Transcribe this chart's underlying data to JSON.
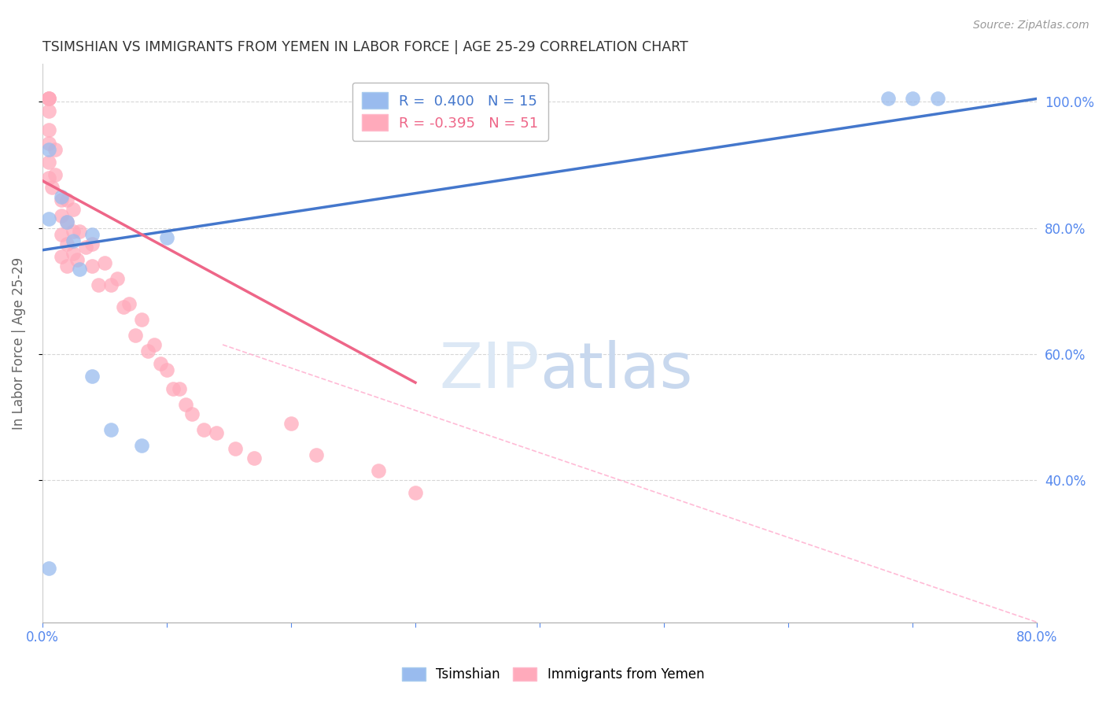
{
  "title": "TSIMSHIAN VS IMMIGRANTS FROM YEMEN IN LABOR FORCE | AGE 25-29 CORRELATION CHART",
  "source": "Source: ZipAtlas.com",
  "ylabel": "In Labor Force | Age 25-29",
  "xlim": [
    0.0,
    0.8
  ],
  "ylim": [
    0.175,
    1.06
  ],
  "blue_R": "0.400",
  "blue_N": "15",
  "pink_R": "-0.395",
  "pink_N": "51",
  "blue_marker_color": "#99BBEE",
  "pink_marker_color": "#FFAABB",
  "blue_line_color": "#4477CC",
  "pink_line_color": "#EE6688",
  "diag_line_color": "#FFAACC",
  "axis_color": "#5588EE",
  "grid_color": "#CCCCCC",
  "background_color": "#FFFFFF",
  "title_color": "#333333",
  "blue_line_x0": 0.0,
  "blue_line_y0": 0.765,
  "blue_line_x1": 0.8,
  "blue_line_y1": 1.005,
  "pink_line_x0": 0.0,
  "pink_line_y0": 0.875,
  "pink_line_x1": 0.3,
  "pink_line_y1": 0.555,
  "diag_line_x0": 0.145,
  "diag_line_y0": 0.615,
  "diag_line_x1": 0.8,
  "diag_line_y1": 0.175,
  "tsimshian_x": [
    0.005,
    0.005,
    0.005,
    0.015,
    0.02,
    0.025,
    0.03,
    0.04,
    0.04,
    0.055,
    0.08,
    0.1,
    0.68,
    0.7,
    0.72
  ],
  "tsimshian_y": [
    0.925,
    0.815,
    0.26,
    0.85,
    0.81,
    0.78,
    0.735,
    0.79,
    0.565,
    0.48,
    0.455,
    0.785,
    1.005,
    1.005,
    1.005
  ],
  "yemen_x": [
    0.005,
    0.005,
    0.005,
    0.005,
    0.005,
    0.005,
    0.005,
    0.005,
    0.008,
    0.01,
    0.01,
    0.015,
    0.015,
    0.015,
    0.015,
    0.02,
    0.02,
    0.02,
    0.02,
    0.025,
    0.025,
    0.025,
    0.028,
    0.03,
    0.035,
    0.04,
    0.04,
    0.045,
    0.05,
    0.055,
    0.06,
    0.065,
    0.07,
    0.075,
    0.08,
    0.085,
    0.09,
    0.095,
    0.1,
    0.105,
    0.11,
    0.115,
    0.12,
    0.13,
    0.14,
    0.155,
    0.17,
    0.2,
    0.22,
    0.27,
    0.3
  ],
  "yemen_y": [
    1.005,
    1.005,
    1.005,
    0.985,
    0.955,
    0.935,
    0.905,
    0.88,
    0.865,
    0.925,
    0.885,
    0.845,
    0.82,
    0.79,
    0.755,
    0.845,
    0.81,
    0.775,
    0.74,
    0.83,
    0.795,
    0.76,
    0.75,
    0.795,
    0.77,
    0.775,
    0.74,
    0.71,
    0.745,
    0.71,
    0.72,
    0.675,
    0.68,
    0.63,
    0.655,
    0.605,
    0.615,
    0.585,
    0.575,
    0.545,
    0.545,
    0.52,
    0.505,
    0.48,
    0.475,
    0.45,
    0.435,
    0.49,
    0.44,
    0.415,
    0.38
  ]
}
